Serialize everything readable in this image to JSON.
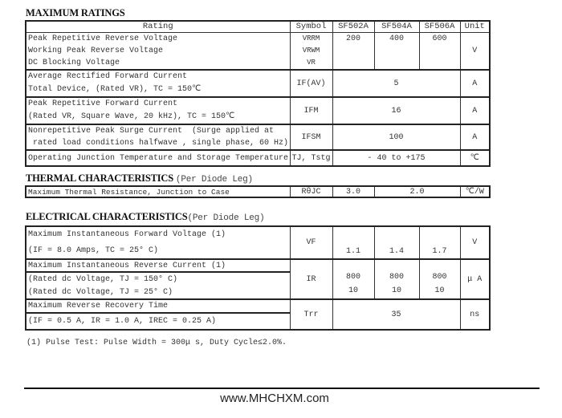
{
  "max_ratings": {
    "title": "MAXIMUM RATINGS",
    "headers": [
      "Rating",
      "Symbol",
      "SF502A",
      "SF504A",
      "SF506A",
      "Unit"
    ],
    "rows": [
      {
        "rating": [
          "Peak Repetitive Reverse Voltage",
          "Working Peak Reverse Voltage",
          "DC Blocking Voltage"
        ],
        "symbol": [
          "VRRM",
          "VRWM",
          "VR"
        ],
        "values": [
          "200",
          "400",
          "600"
        ],
        "unit": "V"
      },
      {
        "rating": [
          "Average Rectified Forward Current",
          "Total Device, (Rated VR), TC = 150℃"
        ],
        "symbol": "IF(AV)",
        "value": "5",
        "unit": "A"
      },
      {
        "rating": [
          "Peak Repetitive Forward Current",
          "(Rated VR, Square Wave, 20 kHz), TC = 150℃"
        ],
        "symbol": "IFM",
        "value": "16",
        "unit": "A"
      },
      {
        "rating": [
          "Nonrepetitive Peak Surge Current  (Surge applied at",
          " rated load conditions halfwave , single phase, 60 Hz)"
        ],
        "symbol": "IFSM",
        "value": "100",
        "unit": "A"
      },
      {
        "rating": [
          "Operating Junction Temperature and Storage Temperature"
        ],
        "symbol": "TJ, Tstg",
        "value": "- 40 to +175",
        "unit": "℃"
      }
    ]
  },
  "thermal": {
    "title": "THERMAL CHARACTERISTICS",
    "subtitle": "(Per Diode Leg)",
    "row": {
      "rating": "Maximum Thermal Resistance, Junction to Case",
      "symbol": "RθJC",
      "value_502": "3.0",
      "value_504_506": "2.0",
      "unit": "℃/W"
    }
  },
  "electrical": {
    "title": "ELECTRICAL CHARACTERISTICS",
    "subtitle": "(Per Diode Leg)",
    "vf": {
      "rating": [
        "Maximum Instantaneous Forward Voltage (1)",
        "(IF = 8.0 Amps, TC = 25° C)"
      ],
      "symbol": "VF",
      "values": [
        "1.1",
        "1.4",
        "1.7"
      ],
      "unit": "V"
    },
    "ir": {
      "rating": [
        "Maximum Instantaneous Reverse Current (1)",
        "(Rated dc Voltage, TJ = 150° C)",
        "(Rated dc Voltage, TJ = 25° C)"
      ],
      "symbol": "IR",
      "values_150": [
        "800",
        "800",
        "800"
      ],
      "values_25": [
        "10",
        "10",
        "10"
      ],
      "unit": "μ A"
    },
    "trr": {
      "rating": [
        "Maximum Reverse Recovery Time",
        "(IF = 0.5 A, IR = 1.0 A, IREC = 0.25 A)"
      ],
      "symbol": "Trr",
      "value": "35",
      "unit": "ns"
    }
  },
  "footnote": "(1) Pulse Test: Pulse Width = 300μ s, Duty Cycle≤2.0%.",
  "footer": {
    "website": "www.MHCHXM.com"
  }
}
